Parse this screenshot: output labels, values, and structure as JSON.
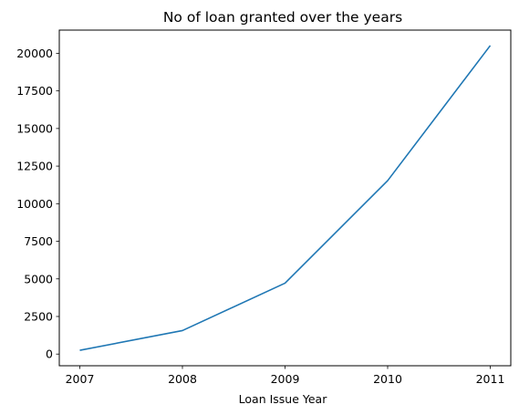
{
  "chart_data": {
    "type": "line",
    "title": "No of loan granted over the years",
    "xlabel": "Loan Issue Year",
    "ylabel": "",
    "x": [
      2007,
      2008,
      2009,
      2010,
      2011
    ],
    "series": [
      {
        "values": [
          251,
          1562,
          4716,
          11532,
          20516
        ]
      }
    ],
    "xlim": [
      2006.8,
      2011.2
    ],
    "ylim": [
      -776,
      21543
    ],
    "xticks": [
      "2007",
      "2008",
      "2009",
      "2010",
      "2011"
    ],
    "yticks": [
      "0",
      "2500",
      "5000",
      "7500",
      "10000",
      "12500",
      "15000",
      "17500",
      "20000"
    ],
    "line_color": "#1f77b4",
    "grid": false
  }
}
